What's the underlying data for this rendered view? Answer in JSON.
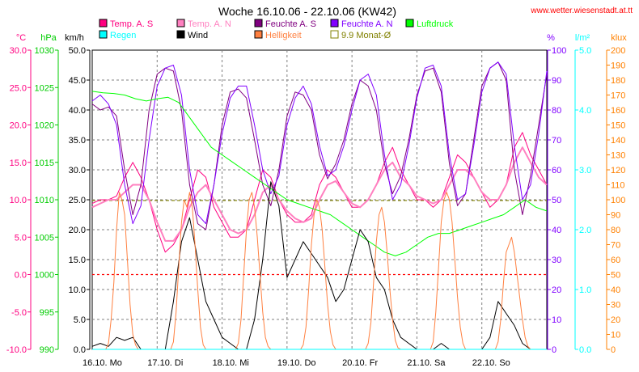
{
  "chart_data": {
    "type": "line",
    "title": "Woche 16.10.06 - 22.10.06 (KW42)",
    "source": "www.wetter.wiesenstadt.at.tt",
    "x_categories": [
      "16.10. Mo",
      "17.10. Di",
      "18.10. Mi",
      "19.10. Do",
      "20.10. Fr",
      "21.10. Sa",
      "22.10. So"
    ],
    "x_range_hours": [
      0,
      168
    ],
    "grid": true,
    "axes": [
      {
        "id": "temp",
        "unit": "°C",
        "color": "#ff0080",
        "side": "left",
        "min": -10,
        "max": 30,
        "step": 5,
        "decimals": 1
      },
      {
        "id": "press",
        "unit": "hPa",
        "color": "#00cc00",
        "side": "left",
        "min": 990,
        "max": 1030,
        "step": 5,
        "decimals": 0
      },
      {
        "id": "wind",
        "unit": "km/h",
        "color": "#000000",
        "side": "left",
        "min": 0,
        "max": 50,
        "step": 5,
        "decimals": 1
      },
      {
        "id": "hum",
        "unit": "%",
        "color": "#8000ff",
        "side": "right",
        "min": 0,
        "max": 100,
        "step": 10,
        "decimals": 0
      },
      {
        "id": "rain",
        "unit": "l/m²",
        "color": "#00ffff",
        "side": "right",
        "min": 0,
        "max": 5,
        "step": 1,
        "decimals": 1
      },
      {
        "id": "lux",
        "unit": "klux",
        "color": "#ff8000",
        "side": "right",
        "min": 0,
        "max": 200,
        "step": 10,
        "decimals": 0
      }
    ],
    "legend": [
      {
        "label": "Temp. A. S",
        "color": "#ff0080",
        "style": "filled"
      },
      {
        "label": "Temp. A. N",
        "color": "#ff80c0",
        "style": "filled"
      },
      {
        "label": "Feuchte A. S",
        "color": "#800080",
        "style": "filled"
      },
      {
        "label": "Feuchte A. N",
        "color": "#8000ff",
        "style": "filled"
      },
      {
        "label": "Luftdruck",
        "color": "#00ff00",
        "style": "filled"
      },
      {
        "label": "Regen",
        "color": "#00ffff",
        "style": "filled"
      },
      {
        "label": "Wind",
        "color": "#000000",
        "style": "filled"
      },
      {
        "label": "Helligkeit",
        "color": "#ff8040",
        "style": "filled"
      },
      {
        "label": "9.9 Monat-Ø",
        "color": "#808000",
        "style": "open"
      }
    ],
    "reference_lines": [
      {
        "axis": "temp",
        "value": 0,
        "color": "#ff0000",
        "dash": "3,3"
      },
      {
        "axis": "temp",
        "value": 9.9,
        "color": "#808000",
        "dash": "4,3"
      }
    ],
    "series": [
      {
        "name": "Temp. A. S",
        "axis": "temp",
        "color": "#ff0080",
        "width": 1,
        "x": [
          0,
          3,
          6,
          9,
          12,
          15,
          18,
          21,
          24,
          27,
          30,
          33,
          36,
          39,
          42,
          45,
          48,
          51,
          54,
          57,
          60,
          63,
          66,
          69,
          72,
          75,
          78,
          81,
          84,
          87,
          90,
          93,
          96,
          99,
          102,
          105,
          108,
          111,
          114,
          117,
          120,
          123,
          126,
          129,
          132,
          135,
          138,
          141,
          144,
          147,
          150,
          153,
          156,
          159,
          162,
          165,
          168
        ],
        "y": [
          9.5,
          10,
          10,
          10.5,
          13,
          15,
          13,
          10,
          6,
          3,
          4,
          6,
          10,
          14,
          13,
          9,
          7,
          5,
          5,
          6,
          10,
          14,
          13,
          10,
          8,
          7,
          7,
          8,
          12,
          14,
          13,
          11,
          9,
          9,
          10,
          12,
          15,
          17,
          14,
          12,
          10,
          10,
          9,
          10,
          13,
          16,
          15,
          13,
          11,
          9,
          10,
          12,
          17,
          19,
          16,
          14,
          12
        ]
      },
      {
        "name": "Temp. A. N",
        "axis": "temp",
        "color": "#ff80c0",
        "width": 2,
        "x": [
          0,
          3,
          6,
          9,
          12,
          15,
          18,
          21,
          24,
          27,
          30,
          33,
          36,
          39,
          42,
          45,
          48,
          51,
          54,
          57,
          60,
          63,
          66,
          69,
          72,
          75,
          78,
          81,
          84,
          87,
          90,
          93,
          96,
          99,
          102,
          105,
          108,
          111,
          114,
          117,
          120,
          123,
          126,
          129,
          132,
          135,
          138,
          141,
          144,
          147,
          150,
          153,
          156,
          159,
          162,
          165,
          168
        ],
        "y": [
          9,
          9.5,
          10,
          10,
          11,
          12,
          12,
          10,
          7,
          4.5,
          4.5,
          6,
          9,
          11,
          12,
          10,
          8,
          6,
          5.5,
          6,
          8,
          11,
          12,
          10,
          8.5,
          7.5,
          7,
          7.5,
          10,
          12,
          12.5,
          11,
          9.5,
          9,
          10,
          12,
          14,
          15,
          13,
          12,
          10.5,
          10,
          9.5,
          10,
          12,
          14,
          14,
          13,
          11,
          10,
          10,
          12,
          15,
          17,
          15,
          13,
          12
        ]
      },
      {
        "name": "Feuchte A. S",
        "axis": "hum",
        "color": "#800080",
        "width": 1,
        "x": [
          0,
          3,
          6,
          9,
          12,
          15,
          18,
          21,
          24,
          27,
          30,
          33,
          36,
          39,
          42,
          45,
          48,
          51,
          54,
          57,
          60,
          63,
          66,
          69,
          72,
          75,
          78,
          81,
          84,
          87,
          90,
          93,
          96,
          99,
          102,
          105,
          108,
          111,
          114,
          117,
          120,
          123,
          126,
          129,
          132,
          135,
          138,
          141,
          144,
          147,
          150,
          153,
          156,
          159,
          162,
          165,
          168
        ],
        "y": [
          82,
          80,
          81,
          78,
          60,
          45,
          55,
          80,
          92,
          94,
          93,
          80,
          55,
          42,
          40,
          55,
          75,
          86,
          87,
          84,
          70,
          55,
          48,
          60,
          78,
          86,
          85,
          80,
          65,
          57,
          62,
          70,
          82,
          90,
          88,
          80,
          62,
          52,
          58,
          70,
          85,
          93,
          94,
          86,
          62,
          48,
          52,
          70,
          88,
          94,
          96,
          90,
          60,
          45,
          58,
          75,
          92
        ]
      },
      {
        "name": "Feuchte A. N",
        "axis": "hum",
        "color": "#8000ff",
        "width": 1,
        "x": [
          0,
          3,
          6,
          9,
          12,
          15,
          18,
          21,
          24,
          27,
          30,
          33,
          36,
          39,
          42,
          45,
          48,
          51,
          54,
          57,
          60,
          63,
          66,
          69,
          72,
          75,
          78,
          81,
          84,
          87,
          90,
          93,
          96,
          99,
          102,
          105,
          108,
          111,
          114,
          117,
          120,
          123,
          126,
          129,
          132,
          135,
          138,
          141,
          144,
          147,
          150,
          153,
          156,
          159,
          162,
          165,
          168
        ],
        "y": [
          83,
          85,
          82,
          75,
          55,
          42,
          48,
          70,
          88,
          94,
          95,
          85,
          60,
          45,
          42,
          55,
          72,
          84,
          88,
          88,
          75,
          60,
          52,
          58,
          75,
          84,
          88,
          82,
          68,
          58,
          60,
          68,
          80,
          90,
          92,
          85,
          65,
          50,
          55,
          68,
          84,
          94,
          95,
          88,
          65,
          50,
          52,
          68,
          86,
          94,
          96,
          92,
          68,
          50,
          55,
          72,
          93
        ]
      },
      {
        "name": "Luftdruck",
        "axis": "press",
        "color": "#00ff00",
        "width": 1,
        "x": [
          0,
          4,
          8,
          12,
          16,
          20,
          24,
          28,
          32,
          36,
          40,
          44,
          48,
          52,
          56,
          60,
          64,
          68,
          72,
          76,
          80,
          84,
          88,
          92,
          96,
          100,
          104,
          108,
          112,
          116,
          120,
          124,
          128,
          132,
          136,
          140,
          144,
          148,
          152,
          156,
          160,
          164,
          168
        ],
        "y": [
          1024.5,
          1024.3,
          1024.2,
          1024,
          1023.5,
          1023.2,
          1023.5,
          1023.7,
          1023,
          1021,
          1019,
          1017,
          1016,
          1015,
          1014,
          1013,
          1012,
          1011,
          1010,
          1009.5,
          1009,
          1008.5,
          1008,
          1007,
          1006,
          1005,
          1004,
          1003,
          1002.5,
          1003,
          1004,
          1005,
          1005.5,
          1005.5,
          1006,
          1006.5,
          1007,
          1007.5,
          1008,
          1009,
          1010,
          1009,
          1008.5
        ]
      },
      {
        "name": "Wind",
        "axis": "wind",
        "color": "#000000",
        "width": 1,
        "x": [
          0,
          3,
          6,
          9,
          12,
          15,
          18,
          21,
          24,
          27,
          30,
          33,
          36,
          39,
          42,
          45,
          48,
          51,
          54,
          57,
          60,
          63,
          66,
          69,
          72,
          75,
          78,
          81,
          84,
          87,
          90,
          93,
          96,
          99,
          102,
          105,
          108,
          111,
          114,
          117,
          120,
          123,
          126,
          129,
          132,
          135,
          138,
          141,
          144,
          147,
          150,
          153,
          156,
          159,
          162,
          165,
          168
        ],
        "y": [
          0.5,
          1,
          0.5,
          2,
          1.5,
          2,
          0,
          0,
          0,
          0,
          8,
          18,
          22,
          15,
          8,
          5,
          2,
          1,
          0,
          0,
          5,
          15,
          28,
          24,
          12,
          15,
          18,
          16,
          14,
          12,
          8,
          10,
          15,
          20,
          18,
          12,
          10,
          5,
          2,
          1,
          0,
          0,
          0,
          1,
          0,
          0,
          0,
          0,
          0,
          2,
          8,
          6,
          4,
          1,
          0,
          0,
          0
        ]
      },
      {
        "name": "Helligkeit",
        "axis": "lux",
        "color": "#ff8040",
        "width": 1,
        "x": [
          0,
          5,
          6,
          7,
          8,
          9,
          10,
          11,
          12,
          13,
          14,
          15,
          16,
          17,
          18,
          24,
          29,
          30,
          31,
          32,
          33,
          34,
          35,
          36,
          37,
          38,
          39,
          40,
          41,
          42,
          48,
          53,
          54,
          55,
          56,
          57,
          58,
          59,
          60,
          61,
          62,
          63,
          64,
          65,
          66,
          72,
          77,
          78,
          79,
          80,
          81,
          82,
          83,
          84,
          85,
          86,
          87,
          88,
          89,
          90,
          96,
          101,
          102,
          103,
          104,
          105,
          106,
          107,
          108,
          109,
          110,
          111,
          112,
          113,
          114,
          120,
          125,
          126,
          127,
          128,
          129,
          130,
          131,
          132,
          133,
          134,
          135,
          136,
          137,
          138,
          144,
          149,
          150,
          151,
          152,
          153,
          154,
          155,
          156,
          157,
          158,
          159,
          160,
          161,
          162,
          168
        ],
        "y": [
          0,
          0,
          4,
          20,
          45,
          80,
          105,
          100,
          90,
          60,
          30,
          10,
          3,
          0,
          0,
          0,
          0,
          5,
          25,
          55,
          85,
          100,
          95,
          105,
          95,
          70,
          40,
          15,
          3,
          0,
          0,
          0,
          4,
          20,
          50,
          80,
          100,
          105,
          95,
          75,
          50,
          25,
          8,
          2,
          0,
          0,
          0,
          3,
          15,
          40,
          70,
          90,
          100,
          95,
          80,
          55,
          30,
          12,
          3,
          0,
          0,
          0,
          4,
          18,
          45,
          72,
          90,
          95,
          85,
          65,
          40,
          20,
          6,
          1,
          0,
          0,
          0,
          5,
          25,
          55,
          85,
          100,
          105,
          100,
          85,
          60,
          35,
          15,
          4,
          0,
          0,
          0,
          5,
          20,
          45,
          65,
          70,
          75,
          65,
          50,
          35,
          20,
          8,
          2,
          0,
          0
        ]
      },
      {
        "name": "Regen",
        "axis": "rain",
        "color": "#00ffff",
        "width": 1,
        "x": [
          0,
          168
        ],
        "y": [
          0,
          0
        ]
      }
    ]
  }
}
